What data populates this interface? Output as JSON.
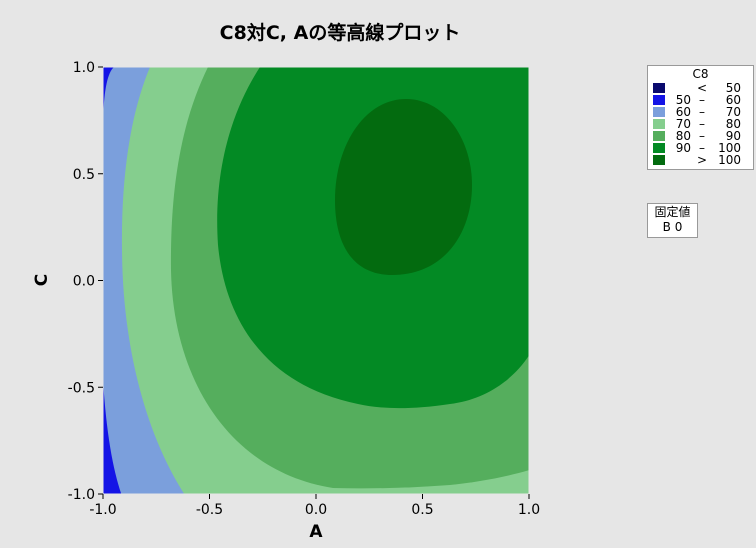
{
  "chart_data": {
    "type": "contour",
    "title": "C8対C, Aの等高線プロット",
    "xlabel": "A",
    "ylabel": "C",
    "xlim": [
      -1.0,
      1.0
    ],
    "ylim": [
      -1.0,
      1.0
    ],
    "x_ticks": [
      "-1.0",
      "-0.5",
      "0.0",
      "0.5",
      "1.0"
    ],
    "y_ticks": [
      "-1.0",
      "-0.5",
      "0.0",
      "0.5",
      "1.0"
    ],
    "levels": [
      {
        "lo": "",
        "op": "<",
        "hi": "50",
        "color": "#0a0a6e"
      },
      {
        "lo": "50",
        "op": "–",
        "hi": "60",
        "color": "#1414e6"
      },
      {
        "lo": "60",
        "op": "–",
        "hi": "70",
        "color": "#7b9fdc"
      },
      {
        "lo": "70",
        "op": "–",
        "hi": "80",
        "color": "#85ce8e"
      },
      {
        "lo": "80",
        "op": "–",
        "hi": "90",
        "color": "#55ae5d"
      },
      {
        "lo": "90",
        "op": "–",
        "hi": "100",
        "color": "#038a24"
      },
      {
        "lo": "",
        "op": ">",
        "hi": "100",
        "color": "#036b0f"
      }
    ],
    "legend": {
      "title": "C8",
      "position": "right"
    },
    "fixed_values": {
      "title": "固定値",
      "text": "B 0"
    }
  }
}
